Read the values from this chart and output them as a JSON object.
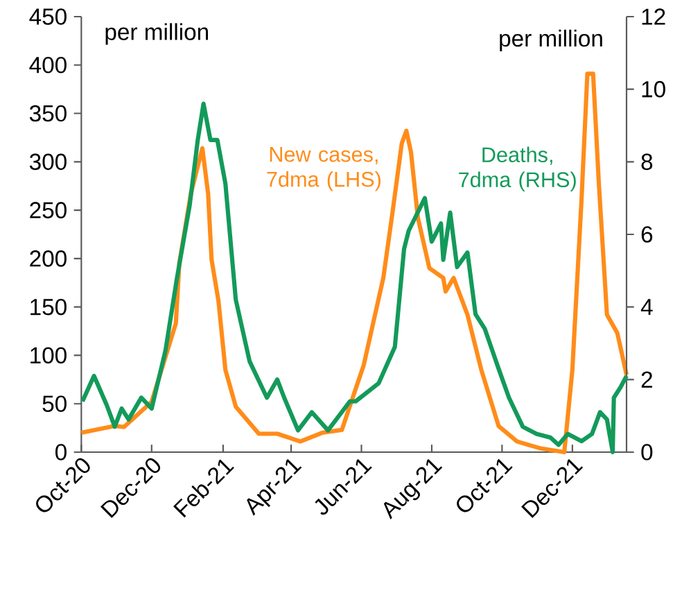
{
  "chart_data": {
    "type": "line",
    "ylabel": "per million",
    "y2label": "per million",
    "xlim": [
      "2020-10-01",
      "2022-01-17"
    ],
    "xticks": [
      {
        "value": "2020-10-01",
        "label": "Oct-20"
      },
      {
        "value": "2020-12-01",
        "label": "Dec-20"
      },
      {
        "value": "2021-02-01",
        "label": "Feb-21"
      },
      {
        "value": "2021-04-01",
        "label": "Apr-21"
      },
      {
        "value": "2021-06-01",
        "label": "Jun-21"
      },
      {
        "value": "2021-08-01",
        "label": "Aug-21"
      },
      {
        "value": "2021-10-01",
        "label": "Oct-21"
      },
      {
        "value": "2021-12-01",
        "label": "Dec-21"
      }
    ],
    "ylim": [
      0,
      450
    ],
    "yticks": [
      0,
      50,
      100,
      150,
      200,
      250,
      300,
      350,
      400,
      450
    ],
    "y2lim": [
      0,
      12
    ],
    "y2ticks": [
      0,
      2,
      4,
      6,
      8,
      10,
      12
    ],
    "marker": "none",
    "line_style": "solid",
    "series": [
      {
        "name": "New cases, 7dma (LHS)",
        "color": "#ff8c1a",
        "x": [
          "2020-10-01",
          "2020-10-30",
          "2020-11-07",
          "2020-12-01",
          "2020-12-22",
          "2020-12-25",
          "2021-01-04",
          "2021-01-14",
          "2021-01-19",
          "2021-01-22",
          "2021-01-28",
          "2021-02-03",
          "2021-02-12",
          "2021-03-04",
          "2021-03-20",
          "2021-04-09",
          "2021-04-28",
          "2021-05-15",
          "2021-06-03",
          "2021-06-20",
          "2021-06-28",
          "2021-07-06",
          "2021-07-10",
          "2021-07-14",
          "2021-07-20",
          "2021-07-30",
          "2021-08-11",
          "2021-08-13",
          "2021-08-20",
          "2021-09-01",
          "2021-09-13",
          "2021-09-28",
          "2021-10-14",
          "2021-11-03",
          "2021-11-24",
          "2021-12-01",
          "2021-12-09",
          "2021-12-14",
          "2021-12-19",
          "2021-12-24",
          "2021-12-31",
          "2022-01-09",
          "2022-01-17"
        ],
        "values": [
          20,
          27,
          26,
          52,
          133,
          195,
          267,
          314,
          267,
          199,
          156,
          85,
          47,
          19,
          19,
          11,
          20,
          23,
          90,
          180,
          248,
          319,
          332,
          310,
          242,
          190,
          180,
          166,
          180,
          142,
          85,
          27,
          11,
          4,
          0,
          85,
          262,
          391,
          391,
          277,
          142,
          123,
          80
        ]
      },
      {
        "name": "Deaths, 7dma (RHS)",
        "color": "#139a5a",
        "axis": "y2",
        "x": [
          "2020-10-02",
          "2020-10-12",
          "2020-10-23",
          "2020-10-30",
          "2020-11-05",
          "2020-11-11",
          "2020-11-22",
          "2020-12-01",
          "2020-12-13",
          "2020-12-23",
          "2021-01-03",
          "2021-01-10",
          "2021-01-15",
          "2021-01-21",
          "2021-01-27",
          "2021-02-03",
          "2021-02-12",
          "2021-02-24",
          "2021-03-11",
          "2021-03-20",
          "2021-03-26",
          "2021-04-07",
          "2021-04-19",
          "2021-05-03",
          "2021-05-22",
          "2021-05-27",
          "2021-06-16",
          "2021-06-30",
          "2021-07-08",
          "2021-07-12",
          "2021-07-26",
          "2021-08-01",
          "2021-08-09",
          "2021-08-11",
          "2021-08-17",
          "2021-08-23",
          "2021-09-01",
          "2021-09-08",
          "2021-09-16",
          "2021-09-28",
          "2021-10-07",
          "2021-10-19",
          "2021-10-31",
          "2021-11-12",
          "2021-11-19",
          "2021-11-27",
          "2021-12-09",
          "2021-12-18",
          "2021-12-25",
          "2021-12-31",
          "2022-01-05",
          "2022-01-06",
          "2022-01-12",
          "2022-01-17"
        ],
        "values": [
          1.4,
          2.1,
          1.3,
          0.7,
          1.2,
          0.9,
          1.5,
          1.2,
          2.8,
          4.8,
          6.8,
          8.6,
          9.6,
          8.6,
          8.6,
          7.4,
          4.2,
          2.5,
          1.5,
          2.0,
          1.5,
          0.6,
          1.1,
          0.6,
          1.4,
          1.4,
          1.9,
          2.9,
          5.6,
          6.1,
          7.0,
          5.8,
          6.3,
          5.3,
          6.6,
          5.1,
          5.5,
          3.8,
          3.4,
          2.3,
          1.5,
          0.7,
          0.5,
          0.4,
          0.2,
          0.5,
          0.3,
          0.5,
          1.1,
          0.9,
          0,
          1.5,
          1.8,
          2.1
        ]
      }
    ]
  }
}
